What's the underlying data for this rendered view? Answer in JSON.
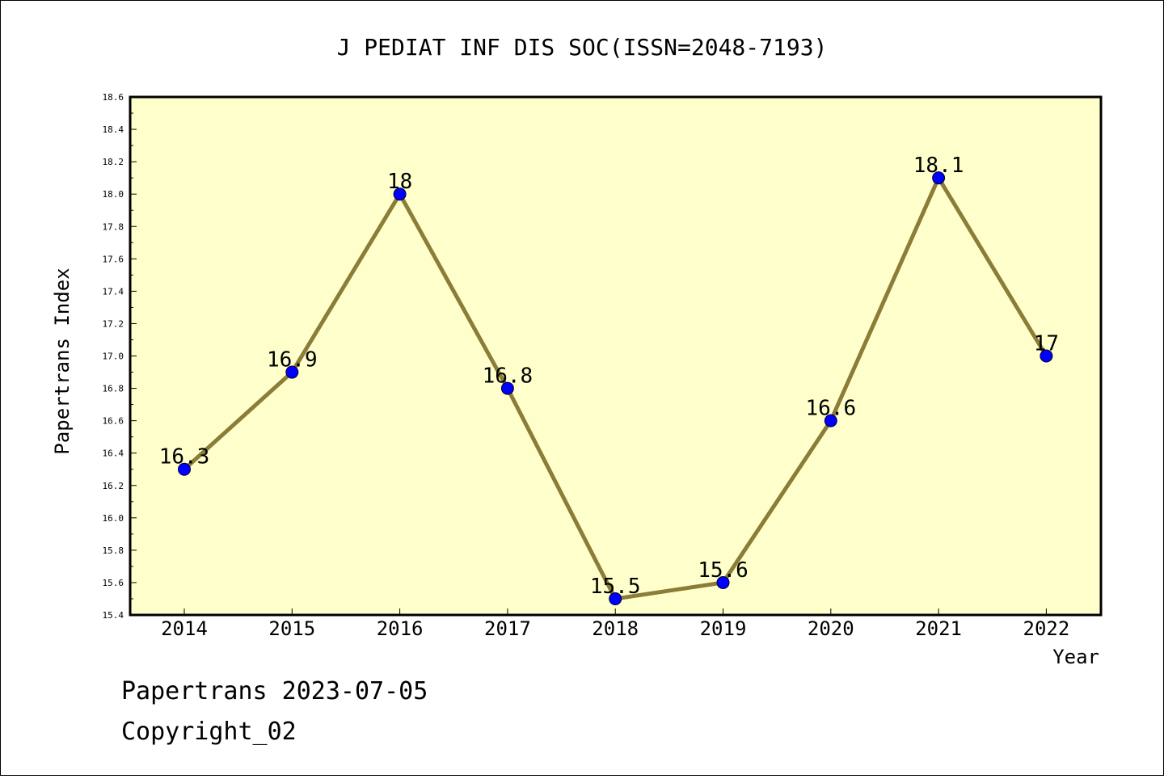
{
  "chart_data": {
    "type": "line",
    "title": "J PEDIAT INF DIS SOC(ISSN=2048-7193)",
    "xlabel": "Year",
    "ylabel": "Papertrans Index",
    "categories": [
      "2014",
      "2015",
      "2016",
      "2017",
      "2018",
      "2019",
      "2020",
      "2021",
      "2022"
    ],
    "series": [
      {
        "values": [
          16.3,
          16.9,
          18.0,
          16.8,
          15.5,
          15.6,
          16.6,
          18.1,
          17.0
        ],
        "labels": [
          "16.3",
          "16.9",
          "18",
          "16.8",
          "15.5",
          "15.6",
          "16.6",
          "18.1",
          "17"
        ]
      }
    ],
    "ylim": [
      15.4,
      18.6
    ],
    "yticks": [
      "15.4",
      "15.6",
      "15.8",
      "16.0",
      "16.2",
      "16.4",
      "16.6",
      "16.8",
      "17.0",
      "17.2",
      "17.4",
      "17.6",
      "17.8",
      "18.0",
      "18.2",
      "18.4",
      "18.6"
    ],
    "grid": false,
    "colors": {
      "plot_background": "#ffffcc",
      "line": "#8b7d37",
      "marker": "#0000ff"
    }
  },
  "footer": {
    "line1": "Papertrans 2023-07-05",
    "line2": "Copyright_02"
  }
}
